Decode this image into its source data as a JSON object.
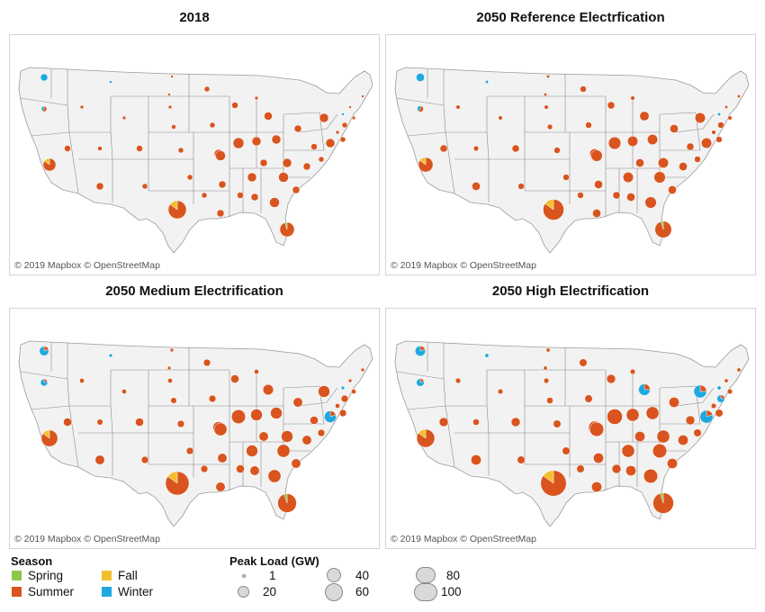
{
  "panels": [
    {
      "title": "2018",
      "copyright": "© 2019 Mapbox © OpenStreetMap",
      "scale": 1.0
    },
    {
      "title": "2050 Reference Electrfication",
      "copyright": "© 2019 Mapbox © OpenStreetMap",
      "scale": 1.15
    },
    {
      "title": "2050 Medium Electrification",
      "copyright": "© 2019 Mapbox © OpenStreetMap",
      "scale": 1.3
    },
    {
      "title": "2050 High Electrification",
      "copyright": "© 2019 Mapbox © OpenStreetMap",
      "scale": 1.42
    }
  ],
  "legend": {
    "season_title": "Season",
    "seasons": [
      {
        "label": "Spring",
        "color": "#8cc84b"
      },
      {
        "label": "Fall",
        "color": "#f2c02d"
      },
      {
        "label": "Summer",
        "color": "#d9541e"
      },
      {
        "label": "Winter",
        "color": "#1ea8e0"
      }
    ],
    "size_title": "Peak Load (GW)",
    "sizes": [
      "1",
      "20",
      "40",
      "60",
      "80",
      "100"
    ]
  }
}
